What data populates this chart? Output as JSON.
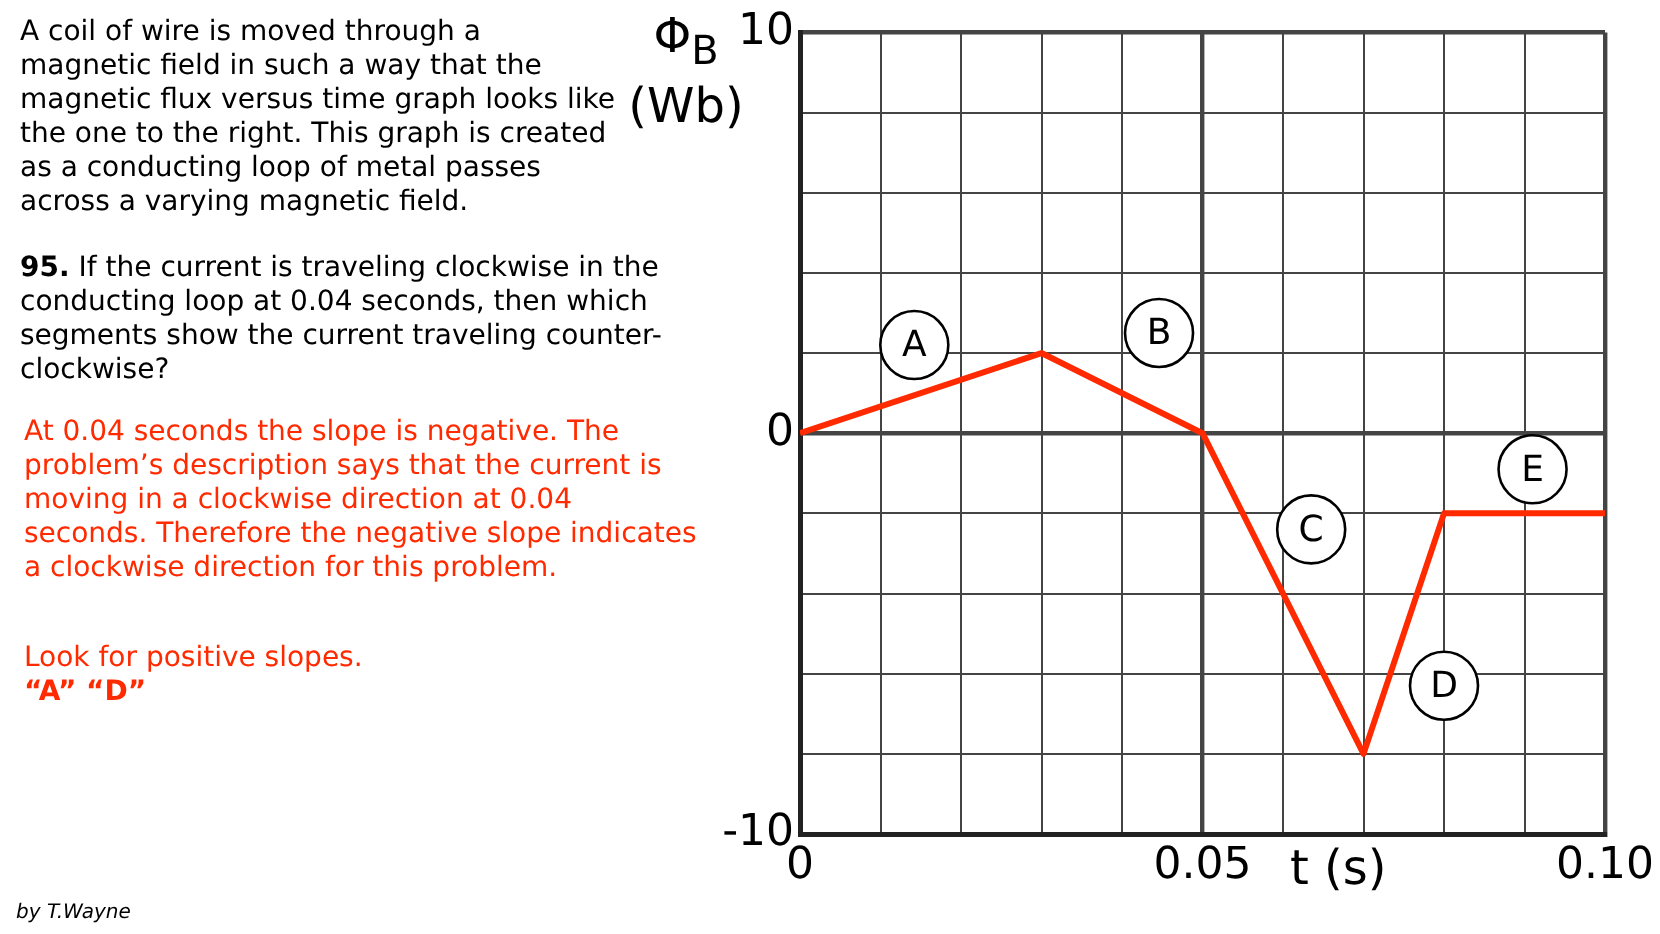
{
  "chart_data": {
    "type": "line",
    "xlabel": "t (s)",
    "ylabel": "Φ$_{B}$ (Wb)",
    "x": [
      0,
      0.03,
      0.05,
      0.07,
      0.08,
      0.1
    ],
    "series": [
      {
        "color": "#ff2a00",
        "values": [
          0,
          2,
          0,
          -8,
          -2,
          -2
        ]
      }
    ],
    "xlim": [
      0,
      0.1
    ],
    "xticks": [
      0,
      {
        "value": 0.01,
        "label": null
      },
      {
        "value": 0.02,
        "label": null
      },
      {
        "value": 0.03,
        "label": null
      },
      {
        "value": 0.04,
        "label": null
      },
      {
        "value": 0.05,
        "label": "0.05"
      },
      {
        "value": 0.06,
        "label": null
      },
      {
        "value": 0.07,
        "label": null
      },
      {
        "value": 0.08,
        "label": null
      },
      {
        "value": 0.09,
        "label": null
      },
      {
        "value": 0.1,
        "label": "0.10"
      }
    ],
    "ylim": [
      -10,
      10
    ],
    "yticks": [
      -10,
      {
        "value": -8,
        "label": null
      },
      {
        "value": -6,
        "label": null
      },
      {
        "value": -4,
        "label": null
      },
      {
        "value": -2,
        "label": null
      },
      0,
      {
        "value": 2,
        "label": null
      },
      {
        "value": 4,
        "label": null
      },
      {
        "value": 6,
        "label": null
      },
      {
        "value": 8,
        "label": null
      },
      10
    ],
    "grid": true,
    "legend": false,
    "marker": "none",
    "line_style": "solid",
    "annotations": [
      {
        "text": "A",
        "x": 0.0142,
        "y": 2.2
      },
      {
        "text": "B",
        "x": 0.0446,
        "y": 2.5
      },
      {
        "text": "C",
        "x": 0.0635,
        "y": -2.4
      },
      {
        "text": "D",
        "x": 0.08,
        "y": -6.3
      },
      {
        "text": "E",
        "x": 0.091,
        "y": -0.9
      },
      "A coil of wire is moved through a magnetic field in such a way that the magnetic flux versus time graph looks like the one to the right. This graph is created as a conducting loop of metal passes across a varying magnetic field.",
      "95. If the current is traveling clockwise in the conducting loop at 0.04 seconds, then which segments show the current traveling counter-clockwise?",
      "At 0.04 seconds the slope is negative. The problem’s description says that the current is moving in a clockwise direction at 0.04 seconds. Therefore the negative slope indicates a clockwise direction for this problem.",
      "Look for positive slopes.",
      "“A”  “D”",
      "by T.Wayne"
    ]
  }
}
